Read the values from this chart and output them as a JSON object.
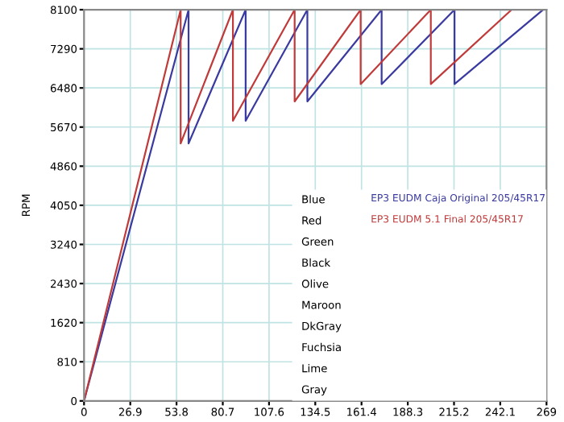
{
  "chart_data": {
    "type": "line",
    "ylabel": "RPM",
    "xlim": [
      0,
      269
    ],
    "ylim": [
      0,
      8100
    ],
    "xticks": [
      0,
      26.9,
      53.8,
      80.7,
      107.6,
      134.5,
      161.4,
      188.3,
      215.2,
      242.1,
      269
    ],
    "yticks": [
      0,
      810,
      1620,
      2430,
      3240,
      4050,
      4860,
      5670,
      6480,
      7290,
      8100
    ],
    "grid": true,
    "legend": "bottom right",
    "series": [
      {
        "name": "EP3 EUDM Caja Original 205/45R17",
        "color": "#3a3aa0",
        "x": [
          0,
          60.8,
          60.8,
          94,
          94,
          129.9,
          129.9,
          173.1,
          173.1,
          215.5,
          215.5,
          267
        ],
        "values": [
          0,
          8100,
          5330,
          8100,
          5800,
          8100,
          6200,
          8100,
          6560,
          8100,
          6560,
          8100
        ]
      },
      {
        "name": "EP3 EUDM 5.1 Final 205/45R17",
        "color": "#c03a3a",
        "x": [
          0,
          56.2,
          56.2,
          86.6,
          86.6,
          122.5,
          122.5,
          160.9,
          160.9,
          201.7,
          201.7,
          248.7
        ],
        "values": [
          0,
          8100,
          5330,
          8100,
          5800,
          8100,
          6200,
          8100,
          6560,
          8100,
          6560,
          8100
        ]
      }
    ],
    "annotations": [
      "Blue",
      "Red",
      "Green",
      "Black",
      "Olive",
      "Maroon",
      "DkGray",
      "Fuchsia",
      "Lime",
      "Gray"
    ]
  }
}
